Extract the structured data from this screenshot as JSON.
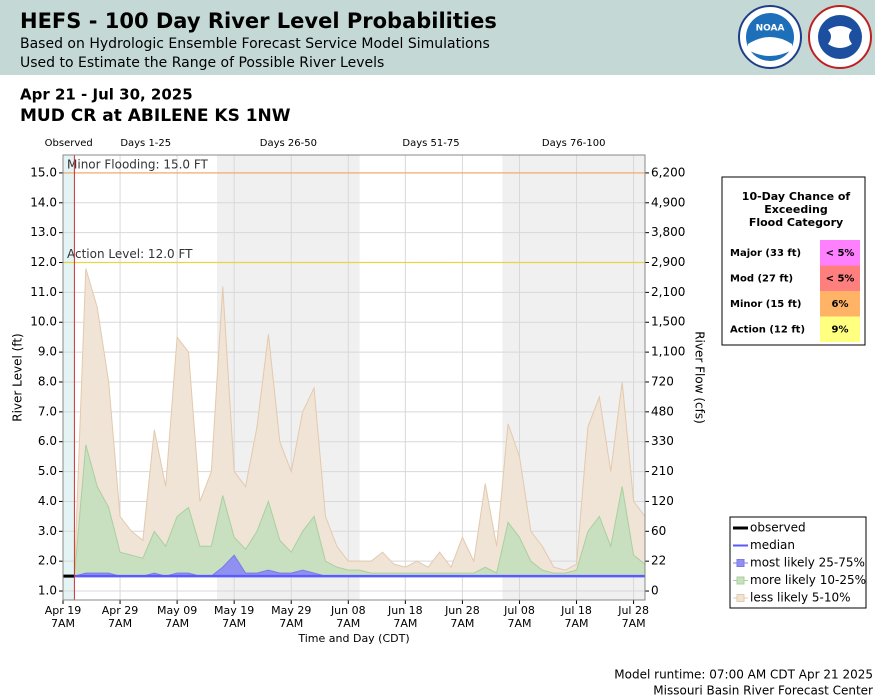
{
  "header": {
    "title": "HEFS - 100 Day River Level Probabilities",
    "subtitle": [
      "Based on Hydrologic Ensemble Forecast Service Model Simulations",
      "Used to Estimate the Range of Possible River Levels"
    ],
    "logos": [
      "NOAA"
    ]
  },
  "chart_data": {
    "type": "fan",
    "date_range": "Apr 21 - Jul 30, 2025",
    "location": "MUD CR at ABILENE KS 1NW",
    "ylabel": "River Level (ft)",
    "y2label": "River Flow (cfs)",
    "xlabel": "Time and Day (CDT)",
    "xlim": [
      "Apr 19",
      "Jul 30"
    ],
    "ylim": [
      0.7,
      15.6
    ],
    "grid": true,
    "xticks": [
      {
        "value": "Apr 19",
        "label": [
          "Apr 19",
          "7AM"
        ]
      },
      {
        "value": "Apr 29",
        "label": [
          "Apr 29",
          "7AM"
        ]
      },
      {
        "value": "May 09",
        "label": [
          "May 09",
          "7AM"
        ]
      },
      {
        "value": "May 19",
        "label": [
          "May 19",
          "7AM"
        ]
      },
      {
        "value": "May 29",
        "label": [
          "May 29",
          "7AM"
        ]
      },
      {
        "value": "Jun 08",
        "label": [
          "Jun 08",
          "7AM"
        ]
      },
      {
        "value": "Jun 18",
        "label": [
          "Jun 18",
          "7AM"
        ]
      },
      {
        "value": "Jun 28",
        "label": [
          "Jun 28",
          "7AM"
        ]
      },
      {
        "value": "Jul 08",
        "label": [
          "Jul 08",
          "7AM"
        ]
      },
      {
        "value": "Jul 18",
        "label": [
          "Jul 18",
          "7AM"
        ]
      },
      {
        "value": "Jul 28",
        "label": [
          "Jul 28",
          "7AM"
        ]
      }
    ],
    "yticks": [
      {
        "value": 1,
        "label": "1.0"
      },
      {
        "value": 2,
        "label": "2.0"
      },
      {
        "value": 3,
        "label": "3.0"
      },
      {
        "value": 4,
        "label": "4.0"
      },
      {
        "value": 5,
        "label": "5.0"
      },
      {
        "value": 6,
        "label": "6.0"
      },
      {
        "value": 7,
        "label": "7.0"
      },
      {
        "value": 8,
        "label": "8.0"
      },
      {
        "value": 9,
        "label": "9.0"
      },
      {
        "value": 10,
        "label": "10.0"
      },
      {
        "value": 11,
        "label": "11.0"
      },
      {
        "value": 12,
        "label": "12.0"
      },
      {
        "value": 13,
        "label": "13.0"
      },
      {
        "value": 14,
        "label": "14.0"
      },
      {
        "value": 15,
        "label": "15.0"
      }
    ],
    "y2ticks": [
      {
        "value": 0,
        "label": "0",
        "stage": 1
      },
      {
        "value": 22,
        "label": "22",
        "stage": 2
      },
      {
        "value": 60,
        "label": "60",
        "stage": 3
      },
      {
        "value": 120,
        "label": "120",
        "stage": 4
      },
      {
        "value": 210,
        "label": "210",
        "stage": 5
      },
      {
        "value": 330,
        "label": "330",
        "stage": 6
      },
      {
        "value": 480,
        "label": "480",
        "stage": 7
      },
      {
        "value": 720,
        "label": "720",
        "stage": 8
      },
      {
        "value": 1100,
        "label": "1,100",
        "stage": 9
      },
      {
        "value": 1500,
        "label": "1,500",
        "stage": 10
      },
      {
        "value": 2100,
        "label": "2,100",
        "stage": 11
      },
      {
        "value": 2900,
        "label": "2,900",
        "stage": 12
      },
      {
        "value": 3800,
        "label": "3,800",
        "stage": 13
      },
      {
        "value": 4900,
        "label": "4,900",
        "stage": 14
      },
      {
        "value": 6200,
        "label": "6,200",
        "stage": 15
      }
    ],
    "periods": [
      {
        "label": "Observed",
        "start": "Apr 19",
        "end": "Apr 21",
        "fill": "#e4f4f4"
      },
      {
        "label": "Days 1-25",
        "start": "Apr 21",
        "end": "May 16",
        "fill": "#ffffff"
      },
      {
        "label": "Days 26-50",
        "start": "May 16",
        "end": "Jun 10",
        "fill": "#f0f0f0"
      },
      {
        "label": "Days 51-75",
        "start": "Jun 10",
        "end": "Jul 05",
        "fill": "#ffffff"
      },
      {
        "label": "Days 76-100",
        "start": "Jul 05",
        "end": "Jul 30",
        "fill": "#f0f0f0"
      }
    ],
    "thresholds": [
      {
        "label": "Minor Flooding: 15.0 FT",
        "value": 15,
        "color": "#f4a460"
      },
      {
        "label": "Action Level: 12.0 FT",
        "value": 12,
        "color": "#e8d44a"
      }
    ],
    "x": [
      "Apr 21",
      "Apr 23",
      "Apr 25",
      "Apr 27",
      "Apr 29",
      "May 01",
      "May 03",
      "May 05",
      "May 07",
      "May 09",
      "May 11",
      "May 13",
      "May 15",
      "May 17",
      "May 19",
      "May 21",
      "May 23",
      "May 25",
      "May 27",
      "May 29",
      "May 31",
      "Jun 02",
      "Jun 04",
      "Jun 06",
      "Jun 08",
      "Jun 10",
      "Jun 12",
      "Jun 14",
      "Jun 16",
      "Jun 18",
      "Jun 20",
      "Jun 22",
      "Jun 24",
      "Jun 26",
      "Jun 28",
      "Jun 30",
      "Jul 02",
      "Jul 04",
      "Jul 06",
      "Jul 08",
      "Jul 10",
      "Jul 12",
      "Jul 14",
      "Jul 16",
      "Jul 18",
      "Jul 20",
      "Jul 22",
      "Jul 24",
      "Jul 26",
      "Jul 28",
      "Jul 30"
    ],
    "series": [
      {
        "name": "less likely 5-10%",
        "kind": "band",
        "color": "#f0e4d6",
        "edge": "#e4c9ad",
        "values": [
          1.5,
          11.8,
          10.5,
          8.0,
          3.5,
          3.0,
          2.7,
          6.4,
          4.5,
          9.5,
          9.0,
          4.0,
          5.0,
          11.2,
          5.0,
          4.5,
          6.5,
          9.6,
          6.0,
          5.0,
          7.0,
          7.8,
          3.5,
          2.5,
          2.0,
          2.0,
          2.0,
          2.3,
          1.9,
          1.8,
          2.0,
          1.8,
          2.3,
          1.8,
          2.8,
          2.0,
          4.6,
          2.5,
          6.6,
          5.5,
          3.0,
          2.5,
          1.8,
          1.7,
          1.9,
          6.5,
          7.5,
          5.0,
          8.0,
          4.0,
          3.5
        ]
      },
      {
        "name": "more likely 10-25%",
        "kind": "band",
        "color": "#c8dfc0",
        "edge": "#a9d09e",
        "values": [
          1.5,
          5.9,
          4.5,
          3.8,
          2.3,
          2.2,
          2.1,
          3.0,
          2.5,
          3.5,
          3.8,
          2.5,
          2.5,
          4.2,
          2.8,
          2.4,
          3.0,
          4.0,
          2.7,
          2.3,
          3.0,
          3.5,
          2.0,
          1.8,
          1.7,
          1.7,
          1.6,
          1.6,
          1.6,
          1.6,
          1.6,
          1.6,
          1.6,
          1.6,
          1.6,
          1.6,
          1.8,
          1.6,
          3.3,
          2.8,
          2.0,
          1.7,
          1.6,
          1.6,
          1.7,
          3.0,
          3.5,
          2.5,
          4.5,
          2.2,
          1.9
        ]
      },
      {
        "name": "most likely 25-75%",
        "kind": "band",
        "color": "#9090f0",
        "edge": "#7a7ae8",
        "values": [
          1.5,
          1.6,
          1.6,
          1.6,
          1.5,
          1.5,
          1.5,
          1.6,
          1.5,
          1.6,
          1.6,
          1.5,
          1.5,
          1.8,
          2.2,
          1.6,
          1.6,
          1.7,
          1.6,
          1.6,
          1.7,
          1.6,
          1.5,
          1.5,
          1.5,
          1.5,
          1.5,
          1.5,
          1.5,
          1.5,
          1.5,
          1.5,
          1.5,
          1.5,
          1.5,
          1.5,
          1.5,
          1.5,
          1.5,
          1.5,
          1.5,
          1.5,
          1.5,
          1.5,
          1.5,
          1.5,
          1.5,
          1.5,
          1.5,
          1.5,
          1.5
        ]
      },
      {
        "name": "median",
        "kind": "median",
        "color": "#5a5aff",
        "values": [
          1.5,
          1.5,
          1.5,
          1.5,
          1.5,
          1.5,
          1.5,
          1.5,
          1.5,
          1.5,
          1.5,
          1.5,
          1.5,
          1.5,
          1.5,
          1.5,
          1.5,
          1.5,
          1.5,
          1.5,
          1.5,
          1.5,
          1.5,
          1.5,
          1.5,
          1.5,
          1.5,
          1.5,
          1.5,
          1.5,
          1.5,
          1.5,
          1.5,
          1.5,
          1.5,
          1.5,
          1.5,
          1.5,
          1.5,
          1.5,
          1.5,
          1.5,
          1.5,
          1.5,
          1.5,
          1.5,
          1.5,
          1.5,
          1.5,
          1.5,
          1.5
        ]
      },
      {
        "name": "observed",
        "kind": "line",
        "color": "#000000",
        "x": [
          "Apr 19",
          "Apr 21"
        ],
        "values": [
          1.5,
          1.5
        ]
      }
    ],
    "legend_order": [
      4,
      3,
      2,
      1,
      0
    ],
    "chance_table": {
      "title": [
        "10-Day Chance of",
        "Exceeding",
        "Flood Category"
      ],
      "rows": [
        {
          "category": "Major (33 ft)",
          "chance": "< 5%",
          "color": "#ff80ff"
        },
        {
          "category": "Mod (27 ft)",
          "chance": "< 5%",
          "color": "#ff7f7f"
        },
        {
          "category": "Minor (15 ft)",
          "chance": "6%",
          "color": "#ffb366"
        },
        {
          "category": "Action (12 ft)",
          "chance": "9%",
          "color": "#ffff80"
        }
      ]
    }
  },
  "footer": {
    "runtime": "Model runtime: 07:00 AM CDT Apr 21 2025",
    "center": "Missouri Basin River Forecast Center"
  }
}
